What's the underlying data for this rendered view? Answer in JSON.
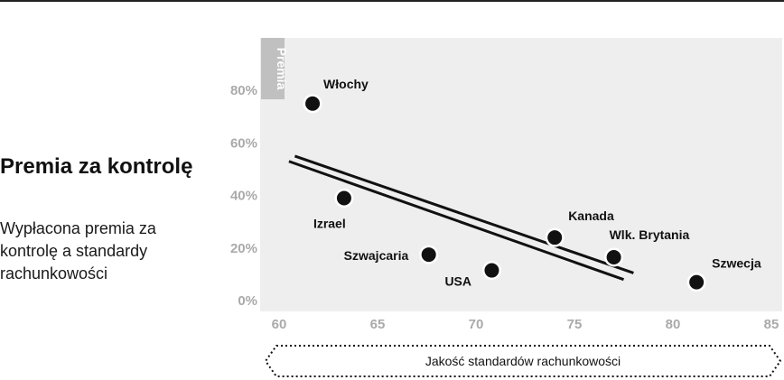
{
  "heading": {
    "title": "Premia za kontrolę",
    "subtitle": "Wypłacona premia za kontrolę a standardy rachunkowości"
  },
  "chart_data": {
    "type": "scatter",
    "ylabel": "Premia",
    "xlabel": "Jakość standardów rachunkowości",
    "xlim": [
      60,
      85
    ],
    "ylim": [
      0,
      100
    ],
    "x_ticks": [
      "60",
      "65",
      "70",
      "75",
      "80",
      "85"
    ],
    "y_ticks": [
      "0%",
      "20%",
      "40%",
      "60%",
      "80%"
    ],
    "grid": false,
    "points": [
      {
        "label": "Włochy",
        "x": 61.7,
        "y": 75
      },
      {
        "label": "Izrael",
        "x": 63.3,
        "y": 39
      },
      {
        "label": "Szwajcaria",
        "x": 67.6,
        "y": 17.5
      },
      {
        "label": "USA",
        "x": 70.8,
        "y": 11.5
      },
      {
        "label": "Kanada",
        "x": 74.0,
        "y": 24
      },
      {
        "label": "Wlk. Brytania",
        "x": 77.0,
        "y": 16.5
      },
      {
        "label": "Szwecja",
        "x": 81.2,
        "y": 7
      }
    ],
    "trend_lines": [
      {
        "x1": 60.5,
        "y1": 53,
        "x2": 77.5,
        "y2": 8
      },
      {
        "x1": 60.8,
        "y1": 55,
        "x2": 78.0,
        "y2": 10.5
      }
    ],
    "colors": {
      "plot_background": "#eeeeee",
      "axis_text": "#aaaaaa",
      "ylabel_box": "#c0c0c0",
      "point": "#111111",
      "trend_line": "#111111"
    }
  }
}
